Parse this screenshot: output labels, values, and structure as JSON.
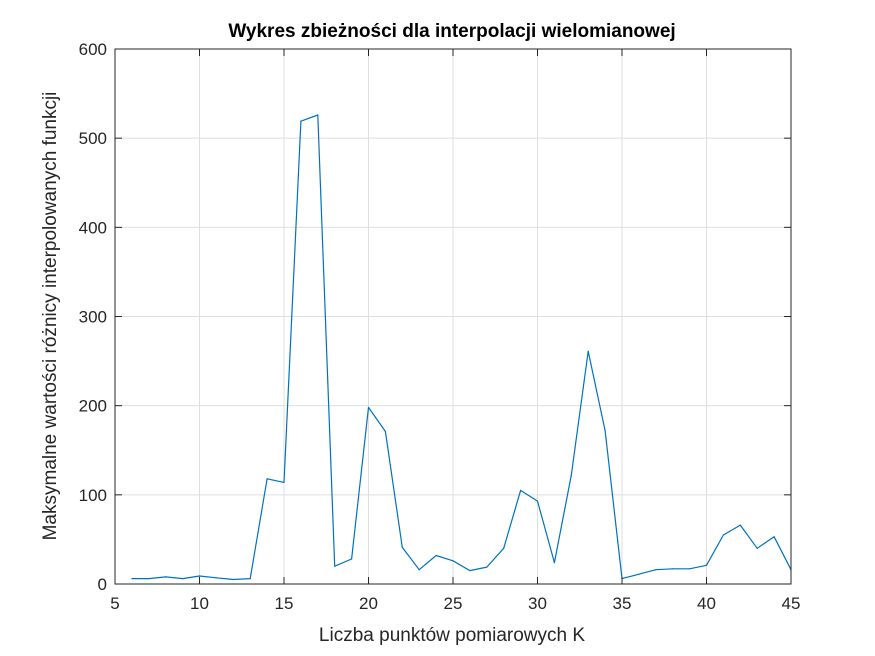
{
  "chart_data": {
    "type": "line",
    "title": "Wykres zbieżności dla interpolacji wielomianowej",
    "xlabel": "Liczba punktów pomiarowych K",
    "ylabel": "Maksymalne wartości różnicy interpolowanych funkcji",
    "xlim": [
      5,
      45
    ],
    "ylim": [
      0,
      600
    ],
    "xticks": [
      5,
      10,
      15,
      20,
      25,
      30,
      35,
      40,
      45
    ],
    "yticks": [
      0,
      100,
      200,
      300,
      400,
      500,
      600
    ],
    "grid": true,
    "box": true,
    "series": [
      {
        "color": "#0072BD",
        "x": [
          6,
          7,
          8,
          9,
          10,
          11,
          12,
          13,
          14,
          15,
          16,
          17,
          18,
          19,
          20,
          21,
          22,
          23,
          24,
          25,
          26,
          27,
          28,
          29,
          30,
          31,
          32,
          33,
          34,
          35,
          36,
          37,
          38,
          39,
          40,
          41,
          42,
          43,
          44,
          45
        ],
        "y": [
          6,
          6,
          8,
          6,
          9,
          7,
          5,
          6,
          118,
          114,
          519,
          526,
          20,
          28,
          198,
          171,
          41,
          16,
          32,
          26,
          15,
          19,
          40,
          105,
          93,
          24,
          122,
          261,
          172,
          6,
          11,
          16,
          17,
          17,
          21,
          55,
          66,
          40,
          53,
          16
        ]
      }
    ]
  }
}
